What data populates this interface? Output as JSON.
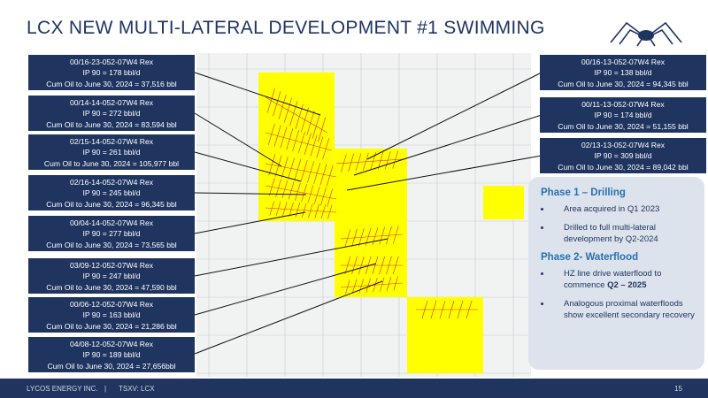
{
  "header": {
    "title": "LCX NEW MULTI-LATERAL DEVELOPMENT #1 SWIMMING"
  },
  "left_callouts": [
    [
      "00/16-23-052-07W4 Rex",
      "IP 90 = 178 bbl/d",
      "Cum Oil to June 30, 2024 = 37,516 bbl"
    ],
    [
      "00/14-14-052-07W4 Rex",
      "IP 90 = 272 bbl/d",
      "Cum Oil to June 30, 2024 = 83,594 bbl"
    ],
    [
      "02/15-14-052-07W4 Rex",
      "IP 90 = 261 bbl/d",
      "Cum Oil to June 30, 2024 = 105,977 bbl"
    ],
    [
      "02/16-14-052-07W4 Rex",
      "IP 90 = 245 bbl/d",
      "Cum Oil to June 30, 2024 = 96,345 bbl"
    ],
    [
      "00/04-14-052-07W4 Rex",
      "IP 90 = 277 bbl/d",
      "Cum Oil to June 30, 2024 = 73,565 bbl"
    ],
    [
      "03/09-12-052-07W4 Rex",
      "IP 90 = 247 bbl/d",
      "Cum Oil to June 30, 2024 = 47,590 bbl"
    ],
    [
      "00/06-12-052-07W4 Rex",
      "IP 90 = 163 bbl/d",
      "Cum Oil to June 30, 2024 = 21,286 bbl"
    ],
    [
      "04/08-12-052-07W4 Rex",
      "IP 90 = 189 bbl/d",
      "Cum Oil to June 30, 2024 = 27,656bbl"
    ]
  ],
  "right_callouts": [
    [
      "00/16-13-052-07W4 Rex",
      "IP 90 = 138 bbl/d",
      "Cum Oil to June 30, 2024 = 94,345 bbl"
    ],
    [
      "00/11-13-052-07W4 Rex",
      "IP 90 = 174 bbl/d",
      "Cum Oil to June 30, 2024 = 51,155 bbl"
    ],
    [
      "02/13-13-052-07W4 Rex",
      "IP 90 = 309 bbl/d",
      "Cum Oil to June 30, 2024 = 89,042 bbl"
    ]
  ],
  "phases": {
    "phase1": {
      "heading": "Phase 1 – Drilling",
      "bullets": [
        "Area acquired in Q1 2023",
        "Drilled to full multi-lateral development by Q2-2024"
      ]
    },
    "phase2": {
      "heading": "Phase 2- Waterflood",
      "bullet1_text": "HZ line drive waterflood to commence",
      "bullet1_bold": "Q2 – 2025",
      "bullet2": "Analogous proximal waterfloods show excellent secondary recovery"
    }
  },
  "footer": {
    "company": "LYCOS ENERGY INC.",
    "separator": "|",
    "ticker": "TSXV: LCX",
    "page": "15"
  }
}
